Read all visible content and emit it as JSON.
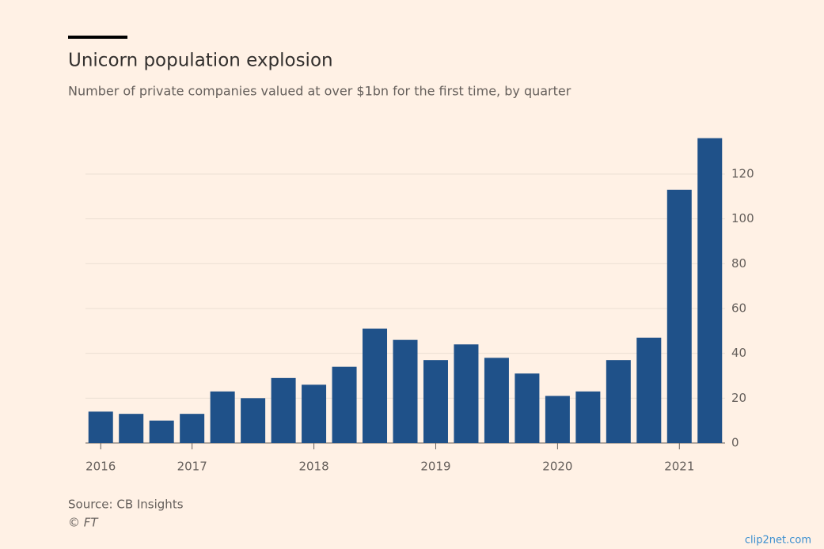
{
  "chart_data": {
    "type": "bar",
    "title": "Unicorn population explosion",
    "subtitle": "Number of private companies valued at over $1bn for the first time, by quarter",
    "categories": [
      "2016",
      null,
      null,
      "2017",
      null,
      null,
      null,
      "2018",
      null,
      null,
      null,
      "2019",
      null,
      null,
      null,
      "2020",
      null,
      null,
      null,
      "2021",
      null
    ],
    "values": [
      14,
      13,
      10,
      13,
      23,
      20,
      29,
      26,
      34,
      51,
      46,
      37,
      44,
      38,
      31,
      21,
      23,
      37,
      47,
      113,
      136
    ],
    "color": "#1f5189",
    "ylim": [
      0,
      138
    ],
    "yticks": [
      0,
      20,
      40,
      60,
      80,
      100,
      120
    ],
    "grid": true,
    "source": "Source: CB Insights",
    "credit": "© FT",
    "watermark": "clip2net.com"
  }
}
